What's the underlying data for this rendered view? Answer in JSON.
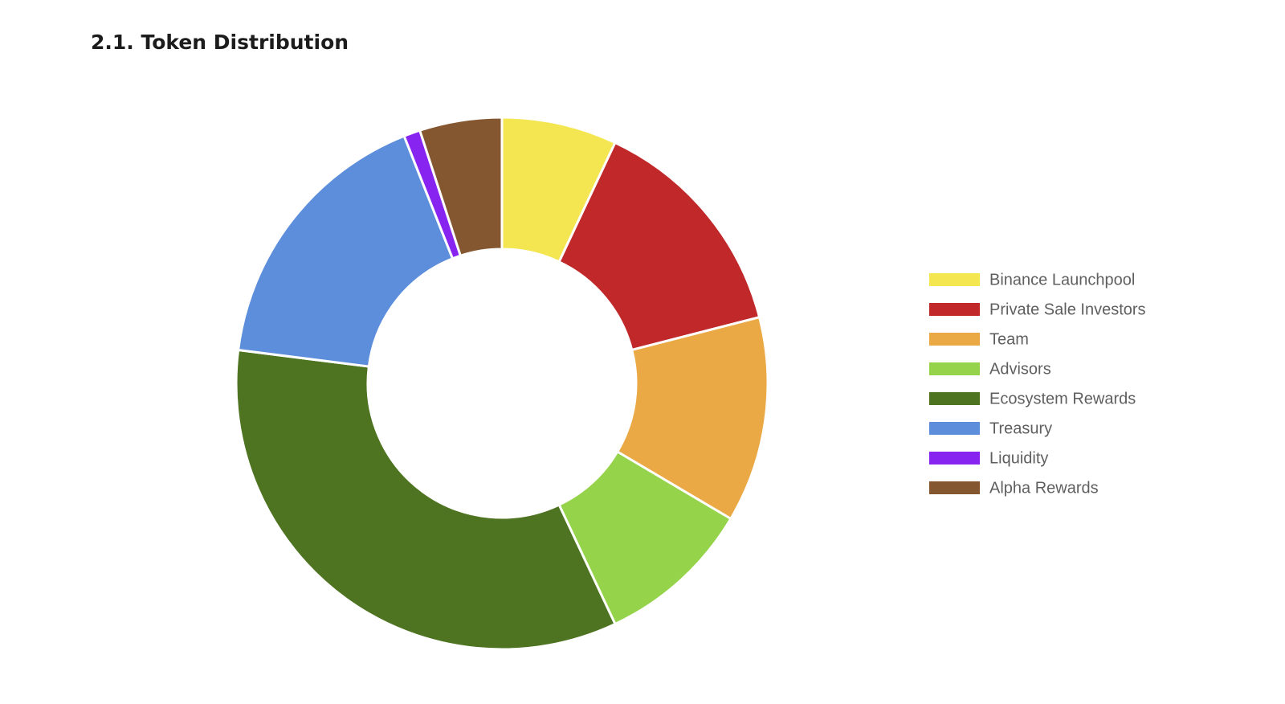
{
  "chart_data": {
    "type": "donut",
    "title": "2.1. Token Distribution",
    "categories": [
      "Binance Launchpool",
      "Private Sale Investors",
      "Team",
      "Advisors",
      "Ecosystem Rewards",
      "Treasury",
      "Liquidity",
      "Alpha Rewards"
    ],
    "values": [
      7,
      14,
      12.5,
      9.5,
      34,
      17,
      1,
      5
    ],
    "colors": [
      "#f4e651",
      "#c0282a",
      "#eaa945",
      "#94d34a",
      "#4e7421",
      "#5d8edc",
      "#8724f0",
      "#855731"
    ],
    "legend": "right"
  }
}
